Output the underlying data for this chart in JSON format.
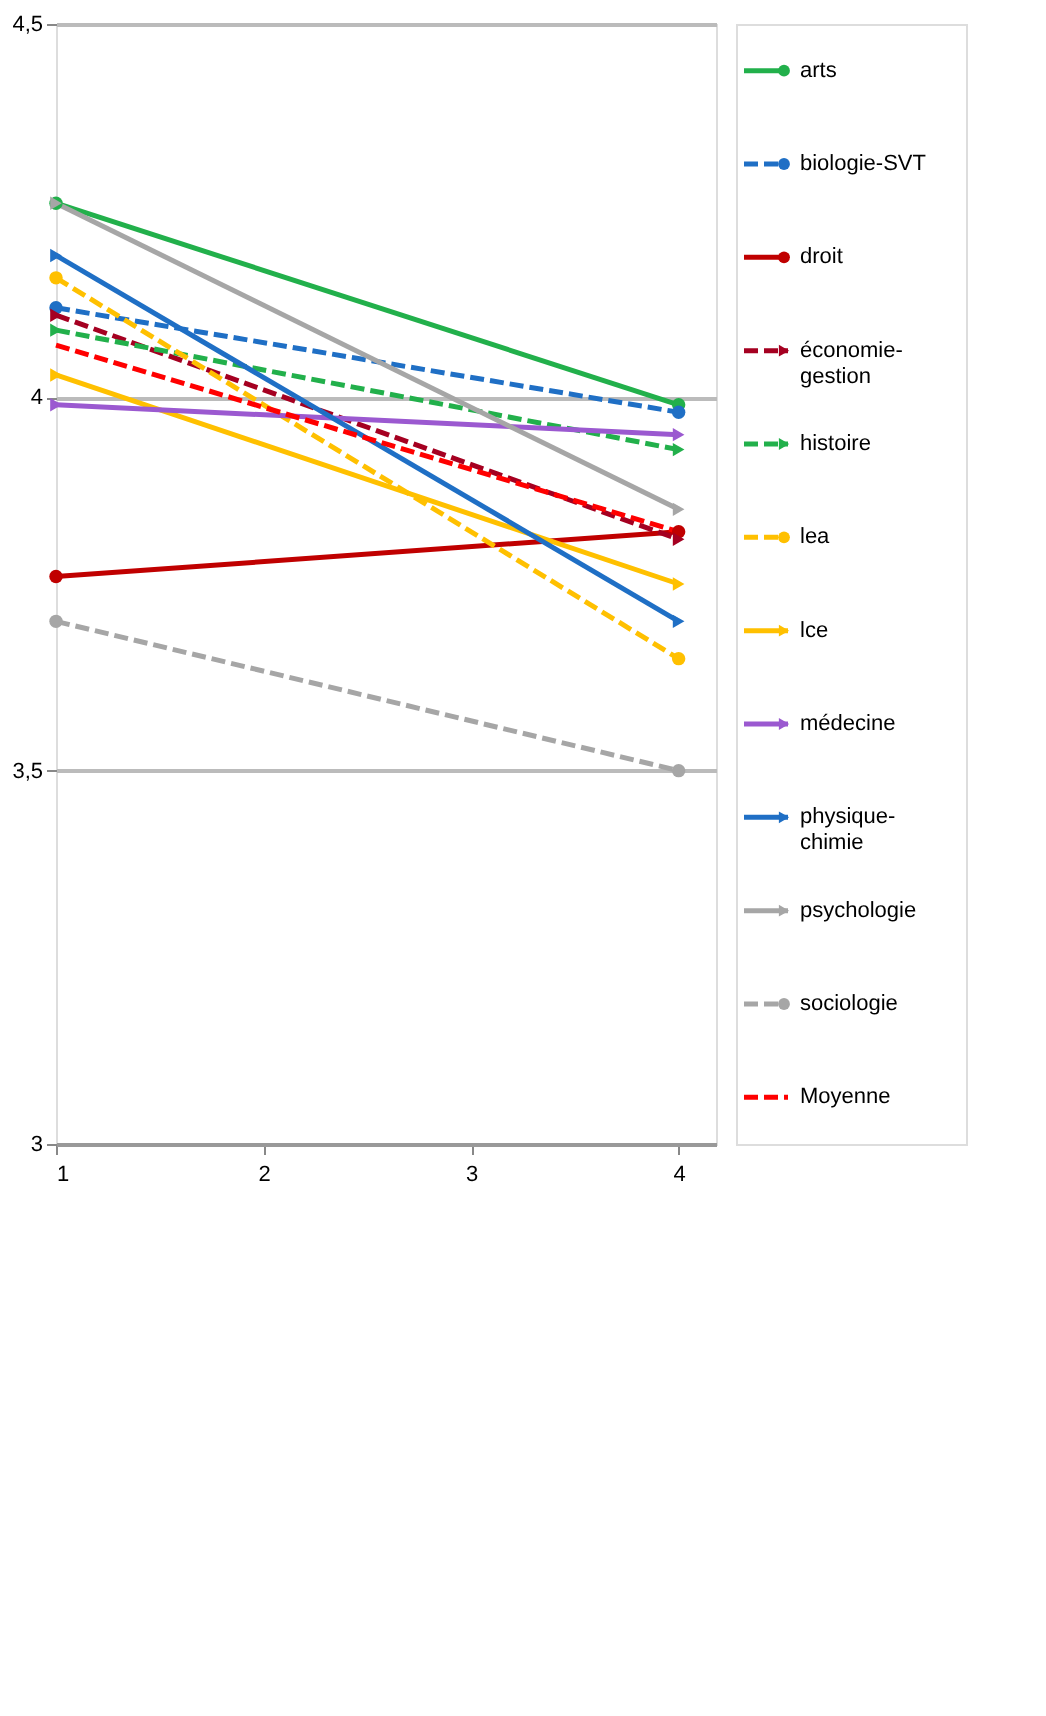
{
  "chart_data": {
    "type": "line",
    "x": [
      1,
      4
    ],
    "xlim": [
      1,
      4.18
    ],
    "xticks": [
      1,
      2,
      3,
      4
    ],
    "ylim": [
      3,
      4.5
    ],
    "yticks": [
      3,
      {
        "value": 3.5,
        "label": "3,5"
      },
      4,
      {
        "value": 4.5,
        "label": "4,5"
      }
    ],
    "grid": "y",
    "legend": "right",
    "series": [
      {
        "name": "arts",
        "color": "#22b04b",
        "values": [
          4.26,
          3.99
        ],
        "marker": "circle",
        "line_style": "solid"
      },
      {
        "name": "biologie-SVT",
        "color": "#1f6fc5",
        "values": [
          4.12,
          3.98
        ],
        "marker": "circle",
        "line_style": "dashed"
      },
      {
        "name": "droit",
        "color": "#c00000",
        "values": [
          3.76,
          3.82
        ],
        "marker": "circle",
        "line_style": "solid"
      },
      {
        "name": "économie-gestion",
        "color": "#a50021",
        "values": [
          4.11,
          3.81
        ],
        "marker": "triangle",
        "line_style": "dashed"
      },
      {
        "name": "histoire",
        "color": "#22b04b",
        "values": [
          4.09,
          3.93
        ],
        "marker": "triangle",
        "line_style": "dashed"
      },
      {
        "name": "lea",
        "color": "#ffc000",
        "values": [
          4.16,
          3.65
        ],
        "marker": "circle",
        "line_style": "dashed"
      },
      {
        "name": "lce",
        "color": "#ffc000",
        "values": [
          4.03,
          3.75
        ],
        "marker": "triangle",
        "line_style": "solid"
      },
      {
        "name": "médecine",
        "color": "#9b59d0",
        "values": [
          3.99,
          3.95
        ],
        "marker": "triangle",
        "line_style": "solid"
      },
      {
        "name": "physique-chimie",
        "color": "#1f6fc5",
        "values": [
          4.19,
          3.7
        ],
        "marker": "triangle",
        "line_style": "solid"
      },
      {
        "name": "psychologie",
        "color": "#a6a6a6",
        "values": [
          4.26,
          3.85
        ],
        "marker": "triangle",
        "line_style": "solid"
      },
      {
        "name": "sociologie",
        "color": "#a6a6a6",
        "values": [
          3.7,
          3.5
        ],
        "marker": "circle",
        "line_style": "dashed"
      },
      {
        "name": "Moyenne",
        "color": "#ff0000",
        "values": [
          4.07,
          3.82
        ],
        "marker": "none",
        "line_style": "dashed"
      }
    ]
  }
}
